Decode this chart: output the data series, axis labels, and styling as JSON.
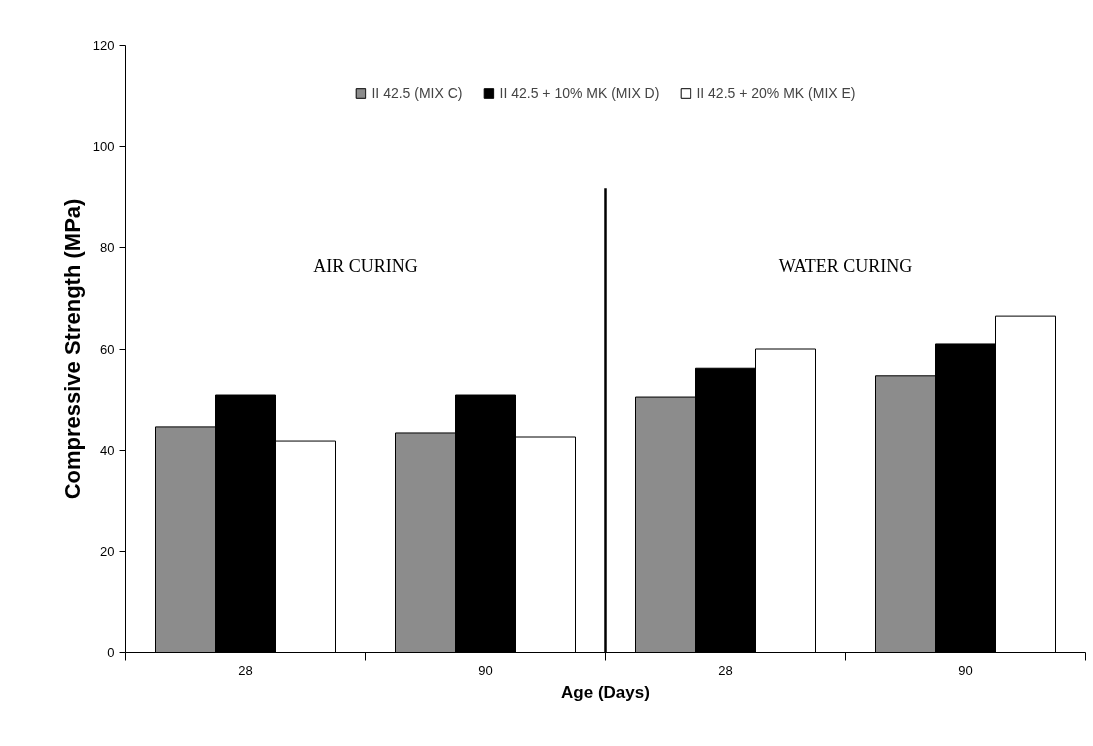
{
  "chart_data": {
    "type": "bar",
    "xlabel": "Age (Days)",
    "ylabel": "Compressive Strength (MPa)",
    "categories": [
      "28",
      "90",
      "28",
      "90"
    ],
    "series": [
      {
        "name": "II 42.5 (MIX C)",
        "color": "#8c8c8c",
        "values": [
          44.6,
          43.4,
          50.5,
          54.7
        ]
      },
      {
        "name": "II 42.5 + 10% MK (MIX D)",
        "color": "#000000",
        "values": [
          50.9,
          50.9,
          56.2,
          61.0
        ]
      },
      {
        "name": "II 42.5 + 20% MK (MIX E)",
        "color": "#ffffff",
        "values": [
          41.8,
          42.6,
          60.0,
          66.5
        ]
      }
    ],
    "ylim": [
      0,
      120
    ],
    "yticks": [
      0,
      20,
      40,
      60,
      80,
      100,
      120
    ],
    "annotations": [
      "AIR CURING",
      "WATER CURING"
    ],
    "grid": false,
    "legend": "top"
  }
}
